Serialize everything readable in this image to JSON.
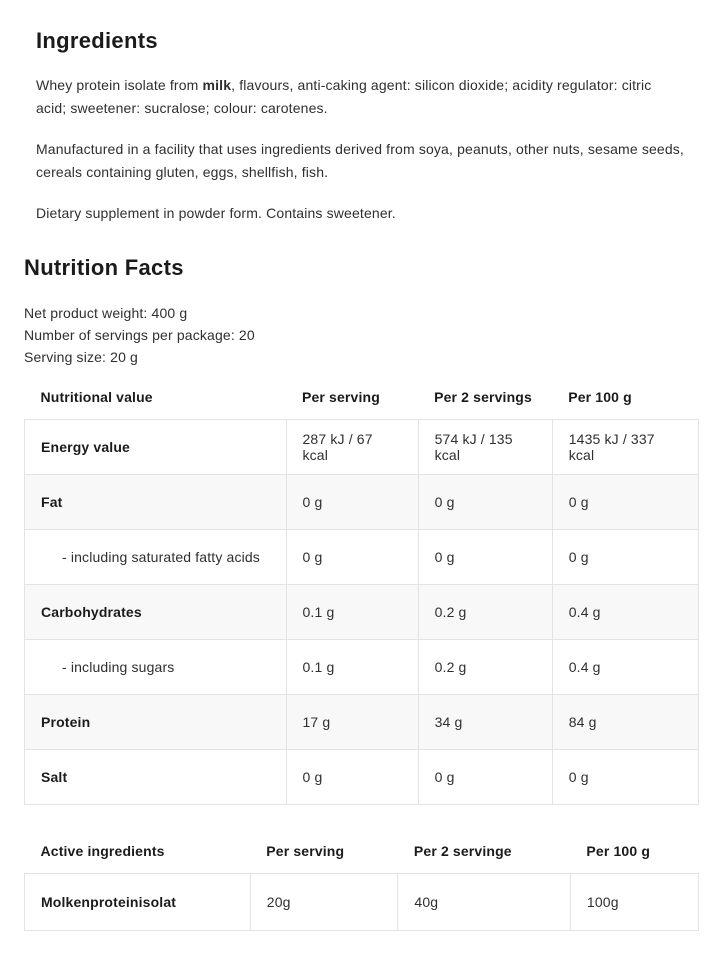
{
  "ingredients": {
    "title": "Ingredients",
    "paragraph1_prefix": "Whey protein isolate from ",
    "paragraph1_bold": "milk",
    "paragraph1_suffix": ", flavours, anti-caking agent: silicon dioxide; acidity regulator: citric acid; sweetener: sucralose; colour: carotenes.",
    "paragraph2": "Manufactured in a facility that uses ingredients derived from soya, peanuts, other nuts, sesame seeds, cereals containing gluten, eggs, shellfish, fish.",
    "paragraph3": "Dietary supplement in powder form. Contains sweetener."
  },
  "nutrition_facts": {
    "title": "Nutrition Facts",
    "meta": {
      "net_weight": "Net product weight: 400 g",
      "servings_per_package": "Number of servings per package: 20",
      "serving_size": "Serving size: 20 g"
    },
    "table": {
      "headers": [
        "Nutritional value",
        "Per serving",
        "Per 2 servings",
        "Per 100 g"
      ],
      "rows": [
        {
          "label": "Energy value",
          "sub": false,
          "values": [
            "287 kJ / 67 kcal",
            "574 kJ / 135 kcal",
            "1435 kJ / 337 kcal"
          ]
        },
        {
          "label": "Fat",
          "sub": false,
          "values": [
            "0 g",
            "0 g",
            "0 g"
          ]
        },
        {
          "label": "- including saturated fatty acids",
          "sub": true,
          "values": [
            "0 g",
            "0 g",
            "0 g"
          ]
        },
        {
          "label": "Carbohydrates",
          "sub": false,
          "values": [
            "0.1 g",
            "0.2 g",
            "0.4 g"
          ]
        },
        {
          "label": "- including sugars",
          "sub": true,
          "values": [
            "0.1 g",
            "0.2 g",
            "0.4 g"
          ]
        },
        {
          "label": "Protein",
          "sub": false,
          "values": [
            "17 g",
            "34 g",
            "84 g"
          ]
        },
        {
          "label": "Salt",
          "sub": false,
          "values": [
            "0 g",
            "0 g",
            "0 g"
          ]
        }
      ]
    }
  },
  "active_ingredients": {
    "table": {
      "headers": [
        "Active ingredients",
        "Per serving",
        "Per 2 servinge",
        "Per 100 g"
      ],
      "rows": [
        {
          "label": "Molkenproteinisolat",
          "sub": false,
          "values": [
            "20g",
            "40g",
            "100g"
          ]
        }
      ]
    }
  },
  "colors": {
    "heading": "#1b1b1b",
    "text": "#2f2f2f",
    "table_border": "#e3e3e3",
    "row_stripe": "#f8f8f8",
    "background": "#ffffff"
  }
}
